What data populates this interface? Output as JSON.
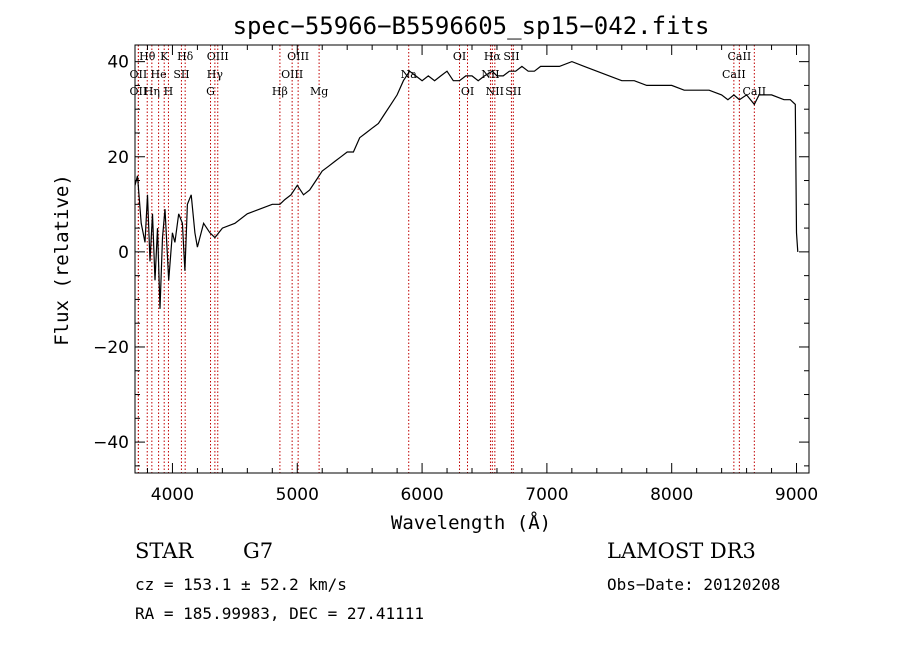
{
  "chart_data": {
    "type": "line",
    "title": "spec−55966−B5596605_sp15−042.fits",
    "xlabel": "Wavelength (Å)",
    "ylabel": "Flux (relative)",
    "xlim": [
      3700,
      9100
    ],
    "ylim": [
      -46.5,
      43.5
    ],
    "x_ticks": [
      4000,
      5000,
      6000,
      7000,
      8000,
      9000
    ],
    "x_tick_labels": [
      "4000",
      "5000",
      "6000",
      "7000",
      "8000",
      "9000"
    ],
    "y_ticks": [
      -40,
      -20,
      0,
      20,
      40
    ],
    "y_tick_labels": [
      "−40",
      "−20",
      "0",
      "20",
      "40"
    ],
    "series": [
      {
        "name": "spectrum",
        "x": [
          3700,
          3720,
          3750,
          3780,
          3800,
          3820,
          3840,
          3860,
          3880,
          3900,
          3920,
          3940,
          3970,
          4000,
          4020,
          4050,
          4080,
          4100,
          4120,
          4150,
          4180,
          4200,
          4250,
          4300,
          4340,
          4400,
          4500,
          4600,
          4700,
          4800,
          4861,
          4900,
          4950,
          5000,
          5050,
          5100,
          5150,
          5200,
          5250,
          5300,
          5350,
          5400,
          5450,
          5500,
          5550,
          5600,
          5650,
          5700,
          5750,
          5800,
          5850,
          5900,
          5950,
          6000,
          6050,
          6100,
          6150,
          6200,
          6250,
          6300,
          6350,
          6400,
          6450,
          6500,
          6563,
          6600,
          6650,
          6700,
          6750,
          6800,
          6850,
          6900,
          6950,
          7000,
          7100,
          7200,
          7300,
          7400,
          7500,
          7600,
          7700,
          7800,
          7900,
          8000,
          8100,
          8200,
          8300,
          8400,
          8450,
          8498,
          8542,
          8600,
          8662,
          8700,
          8800,
          8900,
          8950,
          8990,
          9000,
          9010
        ],
        "values": [
          14,
          16,
          6,
          2,
          12,
          -2,
          8,
          -6,
          5,
          -12,
          3,
          9,
          -6,
          4,
          2,
          8,
          6,
          -4,
          10,
          12,
          4,
          1,
          6,
          4,
          3,
          5,
          6,
          8,
          9,
          10,
          10,
          11,
          12,
          14,
          12,
          13,
          15,
          17,
          18,
          19,
          20,
          21,
          21,
          24,
          25,
          26,
          27,
          29,
          31,
          33,
          36,
          38,
          37,
          36,
          37,
          36,
          37,
          38,
          36,
          36,
          37,
          37,
          36,
          37,
          38,
          37,
          37,
          38,
          38,
          39,
          38,
          38,
          39,
          39,
          39,
          40,
          39,
          38,
          37,
          36,
          36,
          35,
          35,
          35,
          34,
          34,
          34,
          33,
          32,
          33,
          32,
          33,
          31,
          33,
          33,
          32,
          32,
          31,
          4,
          0
        ]
      }
    ],
    "line_labels": [
      {
        "name": "OII",
        "wavelength": 3727,
        "row": 2,
        "text": "OII"
      },
      {
        "name": "Hθ",
        "wavelength": 3798,
        "row": 0,
        "text": "Hθ"
      },
      {
        "name": "OII-b",
        "wavelength": 3727,
        "row": 1,
        "text": "OII"
      },
      {
        "name": "Hη",
        "wavelength": 3835,
        "row": 2,
        "text": "Hη"
      },
      {
        "name": "He",
        "wavelength": 3889,
        "row": 1,
        "text": "He"
      },
      {
        "name": "K",
        "wavelength": 3934,
        "row": 0,
        "text": "K"
      },
      {
        "name": "H",
        "wavelength": 3968,
        "row": 2,
        "text": "H"
      },
      {
        "name": "SII-a",
        "wavelength": 4072,
        "row": 1,
        "text": "SII"
      },
      {
        "name": "Hδ",
        "wavelength": 4102,
        "row": 0,
        "text": "Hδ"
      },
      {
        "name": "OIII-a",
        "wavelength": 4363,
        "row": 0,
        "text": "OIII"
      },
      {
        "name": "Hγ",
        "wavelength": 4340,
        "row": 1,
        "text": "Hγ"
      },
      {
        "name": "G",
        "wavelength": 4305,
        "row": 2,
        "text": "G"
      },
      {
        "name": "Hβ",
        "wavelength": 4861,
        "row": 2,
        "text": "Hβ"
      },
      {
        "name": "OIII-b",
        "wavelength": 4959,
        "row": 1,
        "text": "OIII"
      },
      {
        "name": "OIII-c",
        "wavelength": 5007,
        "row": 0,
        "text": "OIII"
      },
      {
        "name": "Mg",
        "wavelength": 5175,
        "row": 2,
        "text": "Mg"
      },
      {
        "name": "Na",
        "wavelength": 5893,
        "row": 1,
        "text": "Na"
      },
      {
        "name": "OI-a",
        "wavelength": 6300,
        "row": 0,
        "text": "OI"
      },
      {
        "name": "OI-b",
        "wavelength": 6364,
        "row": 2,
        "text": "OI"
      },
      {
        "name": "Hα",
        "wavelength": 6563,
        "row": 0,
        "text": "Hα"
      },
      {
        "name": "NII-a",
        "wavelength": 6548,
        "row": 1,
        "text": "NII"
      },
      {
        "name": "NII-b",
        "wavelength": 6583,
        "row": 2,
        "text": "NII"
      },
      {
        "name": "SII-b",
        "wavelength": 6716,
        "row": 0,
        "text": "SII"
      },
      {
        "name": "SII-c",
        "wavelength": 6731,
        "row": 2,
        "text": "SII"
      },
      {
        "name": "CaII-a",
        "wavelength": 8498,
        "row": 1,
        "text": "CaII"
      },
      {
        "name": "CaII-b",
        "wavelength": 8542,
        "row": 0,
        "text": "CaII"
      },
      {
        "name": "CaII-c",
        "wavelength": 8662,
        "row": 2,
        "text": "CaII"
      }
    ],
    "line_color": "#000000",
    "marker_line_color": "#c00000"
  },
  "info": {
    "object_class": "STAR",
    "subclass": "G7",
    "survey": "LAMOST DR3",
    "cz": "cz = 153.1 ± 52.2 km/s",
    "obs_date": "Obs−Date: 20120208",
    "coords": "RA = 185.99983, DEC =  27.41111"
  }
}
